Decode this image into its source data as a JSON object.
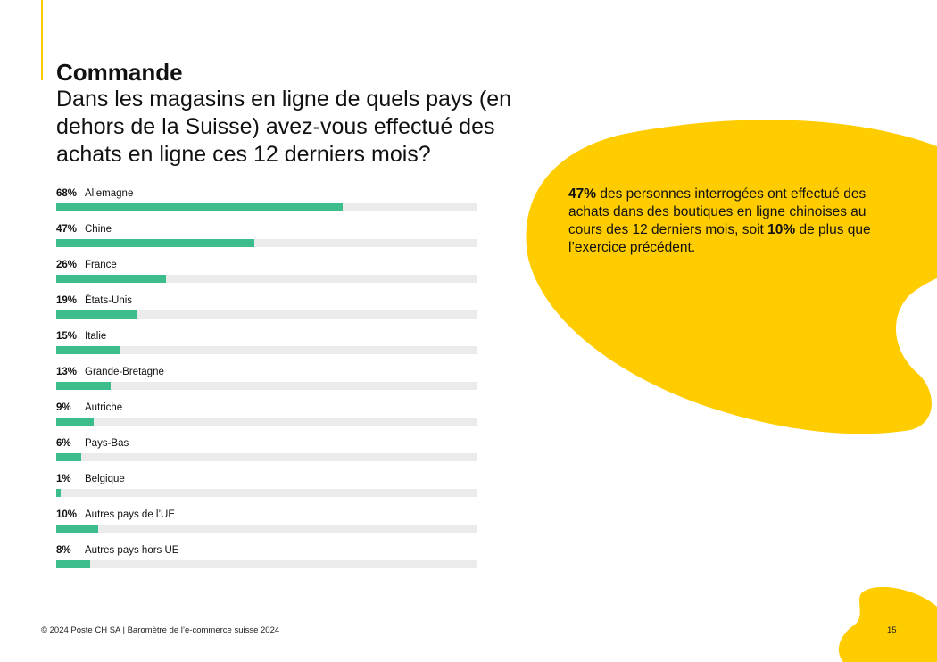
{
  "header": {
    "section_title": "Commande",
    "question": "Dans les magasins en ligne de quels pays (en dehors de la Suisse) avez-vous effectué des achats en ligne ces 12 derniers mois?"
  },
  "chart_data": {
    "type": "bar",
    "orientation": "horizontal",
    "categories": [
      "Allemagne",
      "Chine",
      "France",
      "États-Unis",
      "Italie",
      "Grande-Bretagne",
      "Autriche",
      "Pays-Bas",
      "Belgique",
      "Autres pays de l’UE",
      "Autres pays hors UE"
    ],
    "values": [
      68,
      47,
      26,
      19,
      15,
      13,
      9,
      6,
      1,
      10,
      8
    ],
    "labels": [
      "68%",
      "47%",
      "26%",
      "19%",
      "15%",
      "13%",
      "9%",
      "6%",
      "1%",
      "10%",
      "8%"
    ],
    "unit": "%",
    "xlim": [
      0,
      100
    ],
    "bar_color": "#3dbd8b",
    "track_color": "#ebebeb"
  },
  "callout": {
    "highlight_1": "47%",
    "text_1": " des personnes interrogées ont effectué des achats dans des boutiques en ligne chinoises au cours des 12 derniers mois, soit ",
    "highlight_2": "10%",
    "text_2": " de plus que l’exercice précédent."
  },
  "footer": {
    "copyright": "© 2024 Poste CH SA | Baromètre de l’e-commerce suisse 2024",
    "page_number": "15"
  },
  "colors": {
    "accent": "#FFCC00",
    "bar": "#3dbd8b",
    "track": "#ebebeb"
  }
}
